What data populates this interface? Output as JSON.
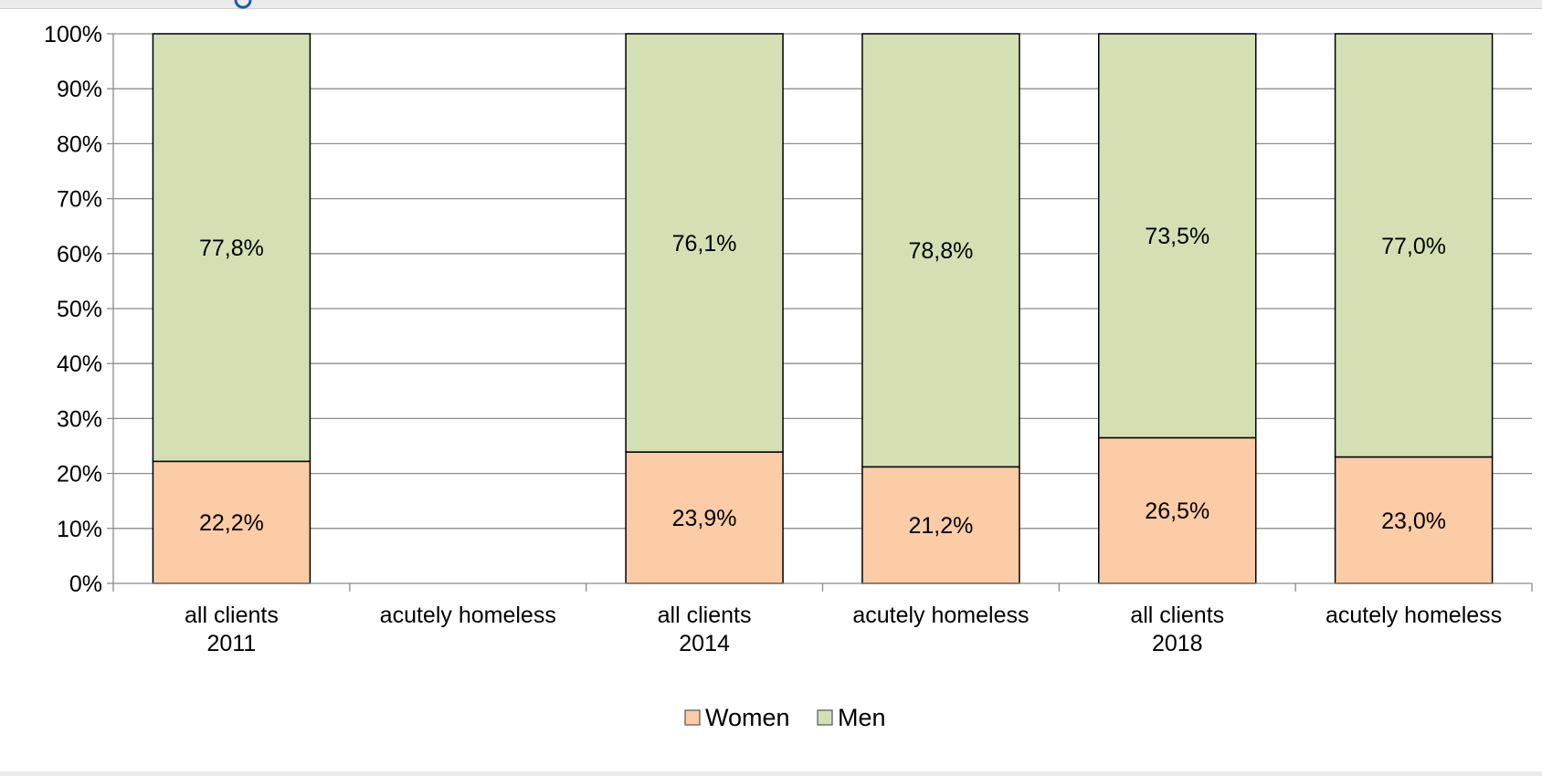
{
  "colors": {
    "women": "#fbcca6",
    "men": "#d4e0b4",
    "grid": "#8c8c8c",
    "bar_border": "#000000",
    "logo_blue": "#1a5ea8"
  },
  "chart_data": {
    "type": "bar",
    "stacked": true,
    "percent_stacked": true,
    "title": "",
    "xlabel": "",
    "ylabel": "",
    "ylim": [
      0,
      100
    ],
    "yticks": [
      "0%",
      "10%",
      "20%",
      "30%",
      "40%",
      "50%",
      "60%",
      "70%",
      "80%",
      "90%",
      "100%"
    ],
    "grid": true,
    "legend_position": "bottom-center",
    "categories": [
      [
        "all clients",
        "2011"
      ],
      [
        "acutely homeless"
      ],
      [
        "all clients",
        "2014"
      ],
      [
        "acutely homeless"
      ],
      [
        "all clients",
        "2018"
      ],
      [
        "acutely homeless"
      ]
    ],
    "series": [
      {
        "name": "Women",
        "values": [
          22.2,
          null,
          23.9,
          21.2,
          26.5,
          23.0
        ],
        "labels": [
          "22,2%",
          "",
          "23,9%",
          "21,2%",
          "26,5%",
          "23,0%"
        ]
      },
      {
        "name": "Men",
        "values": [
          77.8,
          null,
          76.1,
          78.8,
          73.5,
          77.0
        ],
        "labels": [
          "77,8%",
          "",
          "76,1%",
          "78,8%",
          "73,5%",
          "77,0%"
        ]
      }
    ]
  }
}
